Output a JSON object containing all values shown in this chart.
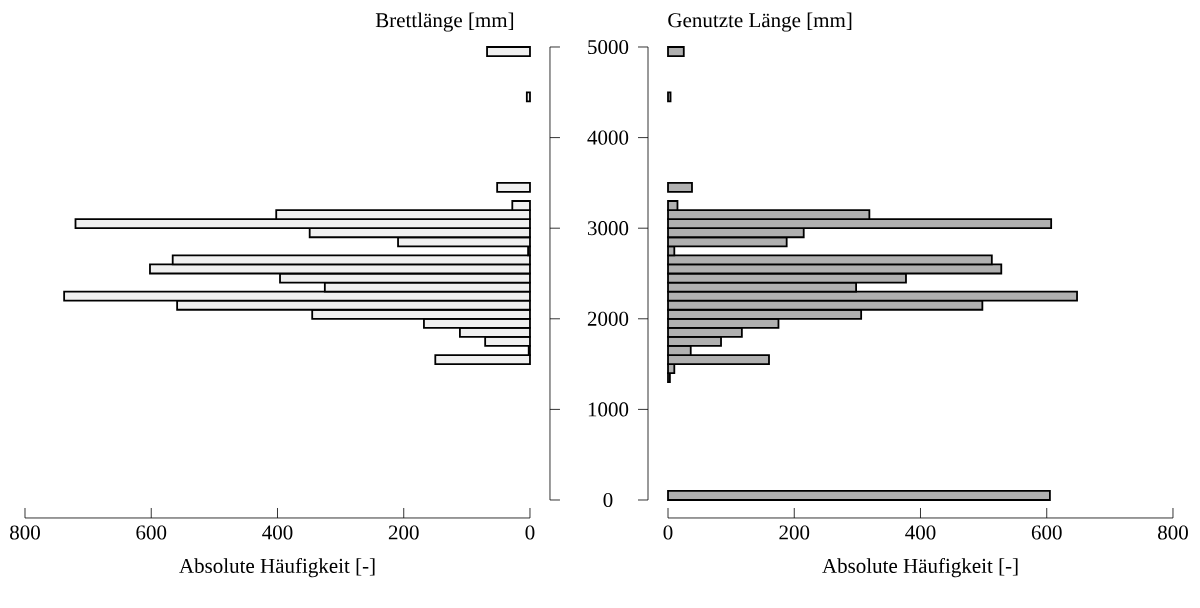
{
  "chart_data": [
    {
      "type": "histogram",
      "orientation": "horizontal",
      "ylabel": "Brettlänge [mm]",
      "xlabel": "Absolute Häufigkeit [-]",
      "color": "#f0f0f0",
      "bins": [
        0,
        100,
        200,
        300,
        400,
        500,
        600,
        700,
        800,
        900,
        1000,
        1100,
        1200,
        1300,
        1400,
        1500,
        1600,
        1700,
        1800,
        1900,
        2000,
        2100,
        2200,
        2300,
        2400,
        2500,
        2600,
        2700,
        2800,
        2900,
        3000,
        3100,
        3200,
        3300,
        3400,
        3500,
        3600,
        3700,
        3800,
        3900,
        4000,
        4100,
        4200,
        4300,
        4400,
        4500,
        4600,
        4700,
        4800,
        4900,
        5000
      ],
      "values": [
        0,
        0,
        0,
        0,
        0,
        0,
        0,
        0,
        0,
        0,
        0,
        0,
        0,
        0,
        0,
        150,
        2,
        71,
        111,
        168,
        345,
        559,
        738,
        325,
        396,
        602,
        566,
        3,
        209,
        349,
        720,
        402,
        28,
        0,
        52,
        0,
        0,
        0,
        0,
        0,
        0,
        0,
        0,
        0,
        5,
        0,
        0,
        0,
        0,
        68
      ],
      "xlim": [
        800,
        0
      ],
      "xticks": [
        0,
        200,
        400,
        600,
        800
      ],
      "ylim": [
        0,
        5000
      ],
      "yticks": [
        0,
        1000,
        2000,
        3000,
        4000,
        5000
      ]
    },
    {
      "type": "histogram",
      "orientation": "horizontal",
      "ylabel": "Genutzte Länge [mm]",
      "xlabel": "Absolute Häufigkeit [-]",
      "color": "#b0b0b0",
      "bins": [
        0,
        100,
        200,
        300,
        400,
        500,
        600,
        700,
        800,
        900,
        1000,
        1100,
        1200,
        1300,
        1400,
        1500,
        1600,
        1700,
        1800,
        1900,
        2000,
        2100,
        2200,
        2300,
        2400,
        2500,
        2600,
        2700,
        2800,
        2900,
        3000,
        3100,
        3200,
        3300,
        3400,
        3500,
        3600,
        3700,
        3800,
        3900,
        4000,
        4100,
        4200,
        4300,
        4400,
        4500,
        4600,
        4700,
        4800,
        4900,
        5000
      ],
      "values": [
        605,
        0,
        0,
        0,
        0,
        0,
        0,
        0,
        0,
        0,
        0,
        0,
        0,
        3,
        10,
        160,
        36,
        84,
        117,
        175,
        306,
        498,
        648,
        298,
        377,
        528,
        513,
        10,
        188,
        215,
        607,
        319,
        15,
        0,
        38,
        0,
        0,
        0,
        0,
        0,
        0,
        0,
        0,
        0,
        4,
        0,
        0,
        0,
        0,
        25
      ],
      "xlim": [
        0,
        800
      ],
      "xticks": [
        0,
        200,
        400,
        600,
        800
      ],
      "ylim": [
        0,
        5000
      ],
      "yticks": [
        0,
        1000,
        2000,
        3000,
        4000,
        5000
      ],
      "tick_labels": "x"
    }
  ]
}
